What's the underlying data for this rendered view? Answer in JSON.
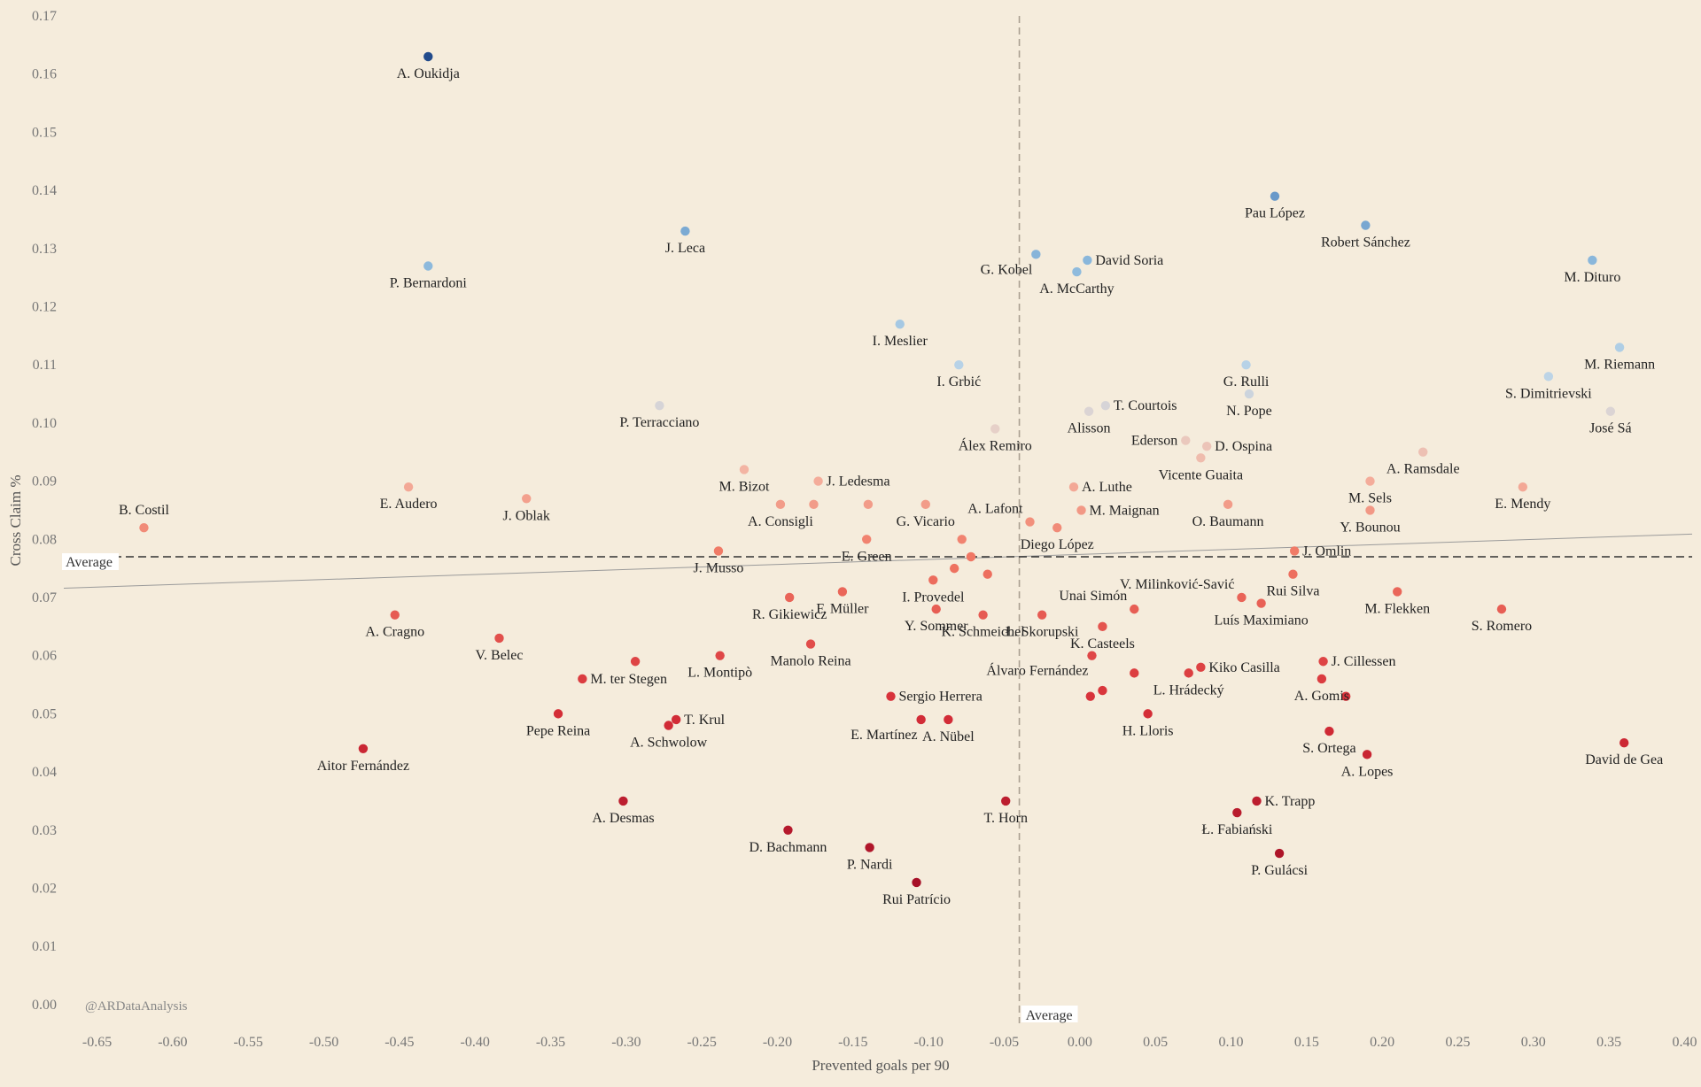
{
  "chart_data": {
    "type": "scatter",
    "xlabel": "Prevented goals per 90",
    "ylabel": "Cross Claim %",
    "xlim": [
      -0.672,
      0.405
    ],
    "ylim": [
      -0.002,
      0.17
    ],
    "xticks": [
      "-0.65",
      "-0.60",
      "-0.55",
      "-0.50",
      "-0.45",
      "-0.40",
      "-0.35",
      "-0.30",
      "-0.25",
      "-0.20",
      "-0.15",
      "-0.10",
      "-0.05",
      "0.00",
      "0.05",
      "0.10",
      "0.15",
      "0.20",
      "0.25",
      "0.30",
      "0.35",
      "0.40"
    ],
    "yticks": [
      "0.00",
      "0.01",
      "0.02",
      "0.03",
      "0.04",
      "0.05",
      "0.06",
      "0.07",
      "0.08",
      "0.09",
      "0.10",
      "0.11",
      "0.12",
      "0.13",
      "0.14",
      "0.15",
      "0.16",
      "0.17"
    ],
    "x_average": -0.04,
    "y_average": 0.077,
    "average_label_x": "Average",
    "average_label_y": "Average",
    "trend_line": {
      "x": [
        -0.672,
        0.405
      ],
      "y": [
        0.0716,
        0.0809
      ]
    },
    "credit": "@ARDataAnalysis",
    "grid": false,
    "colormap": "RdBu (low cross claim = red, high = blue)",
    "points": [
      {
        "name": "A. Oukidja",
        "x": -0.431,
        "y": 0.163
      },
      {
        "name": "P. Bernardoni",
        "x": -0.431,
        "y": 0.127
      },
      {
        "name": "J. Leca",
        "x": -0.261,
        "y": 0.133
      },
      {
        "name": "I. Meslier",
        "x": -0.119,
        "y": 0.117
      },
      {
        "name": "I. Grbić",
        "x": -0.08,
        "y": 0.11
      },
      {
        "name": "P. Terracciano",
        "x": -0.278,
        "y": 0.103
      },
      {
        "name": "Álex Remiro",
        "x": -0.056,
        "y": 0.099
      },
      {
        "name": "G. Kobel",
        "x": -0.029,
        "y": 0.129
      },
      {
        "name": "David Soria",
        "x": 0.005,
        "y": 0.128
      },
      {
        "name": "A. McCarthy",
        "x": -0.002,
        "y": 0.126
      },
      {
        "name": "Pau López",
        "x": 0.129,
        "y": 0.139
      },
      {
        "name": "Robert Sánchez",
        "x": 0.189,
        "y": 0.134
      },
      {
        "name": "M. Dituro",
        "x": 0.339,
        "y": 0.128
      },
      {
        "name": "M. Riemann",
        "x": 0.357,
        "y": 0.113
      },
      {
        "name": "S. Dimitrievski",
        "x": 0.31,
        "y": 0.108
      },
      {
        "name": "José Sá",
        "x": 0.351,
        "y": 0.102
      },
      {
        "name": "G. Rulli",
        "x": 0.11,
        "y": 0.11
      },
      {
        "name": "N. Pope",
        "x": 0.112,
        "y": 0.105
      },
      {
        "name": "T. Courtois",
        "x": 0.017,
        "y": 0.103
      },
      {
        "name": "Alisson",
        "x": 0.006,
        "y": 0.102
      },
      {
        "name": "Ederson",
        "x": 0.07,
        "y": 0.097
      },
      {
        "name": "D. Ospina",
        "x": 0.084,
        "y": 0.096
      },
      {
        "name": "Vicente Guaita",
        "x": 0.08,
        "y": 0.094
      },
      {
        "name": "A. Ramsdale",
        "x": 0.227,
        "y": 0.095
      },
      {
        "name": "M. Sels",
        "x": 0.192,
        "y": 0.09
      },
      {
        "name": "E. Mendy",
        "x": 0.293,
        "y": 0.089
      },
      {
        "name": "Y. Bounou",
        "x": 0.192,
        "y": 0.085
      },
      {
        "name": "B. Costil",
        "x": -0.619,
        "y": 0.082
      },
      {
        "name": "E. Audero",
        "x": -0.444,
        "y": 0.089
      },
      {
        "name": "J. Oblak",
        "x": -0.366,
        "y": 0.087
      },
      {
        "name": "M. Bizot",
        "x": -0.222,
        "y": 0.092
      },
      {
        "name": "J. Ledesma",
        "x": -0.173,
        "y": 0.09
      },
      {
        "name": "A. Consigli",
        "x": -0.198,
        "y": 0.086
      },
      {
        "name": "",
        "x": -0.176,
        "y": 0.086
      },
      {
        "name": "",
        "x": -0.14,
        "y": 0.086
      },
      {
        "name": "G. Vicario",
        "x": -0.102,
        "y": 0.086
      },
      {
        "name": "A. Lafont",
        "x": -0.033,
        "y": 0.083
      },
      {
        "name": "A. Luthe",
        "x": -0.004,
        "y": 0.089
      },
      {
        "name": "M. Maignan",
        "x": 0.001,
        "y": 0.085
      },
      {
        "name": "Diego López",
        "x": -0.015,
        "y": 0.082
      },
      {
        "name": "O. Baumann",
        "x": 0.098,
        "y": 0.086
      },
      {
        "name": "J. Musso",
        "x": -0.239,
        "y": 0.078
      },
      {
        "name": "E. Green",
        "x": -0.141,
        "y": 0.08
      },
      {
        "name": "",
        "x": -0.078,
        "y": 0.08
      },
      {
        "name": "",
        "x": -0.072,
        "y": 0.077
      },
      {
        "name": "",
        "x": -0.083,
        "y": 0.075
      },
      {
        "name": "",
        "x": -0.061,
        "y": 0.074
      },
      {
        "name": "I. Provedel",
        "x": -0.097,
        "y": 0.073
      },
      {
        "name": "J. Omlin",
        "x": 0.142,
        "y": 0.078
      },
      {
        "name": "Rui Silva",
        "x": 0.141,
        "y": 0.074
      },
      {
        "name": "V. Milinković-Savić",
        "x": 0.107,
        "y": 0.07
      },
      {
        "name": "Luís Maximiano",
        "x": 0.12,
        "y": 0.069
      },
      {
        "name": "M. Flekken",
        "x": 0.21,
        "y": 0.071
      },
      {
        "name": "S. Romero",
        "x": 0.279,
        "y": 0.068
      },
      {
        "name": "Unai Simón",
        "x": 0.036,
        "y": 0.068
      },
      {
        "name": "K. Casteels",
        "x": 0.015,
        "y": 0.065
      },
      {
        "name": "Ł. Skorupski",
        "x": -0.025,
        "y": 0.067
      },
      {
        "name": "K. Schmeichel",
        "x": -0.064,
        "y": 0.067
      },
      {
        "name": "Y. Sommer",
        "x": -0.095,
        "y": 0.068
      },
      {
        "name": "F. Müller",
        "x": -0.157,
        "y": 0.071
      },
      {
        "name": "R. Gikiewicz",
        "x": -0.192,
        "y": 0.07
      },
      {
        "name": "A. Cragno",
        "x": -0.453,
        "y": 0.067
      },
      {
        "name": "V. Belec",
        "x": -0.384,
        "y": 0.063
      },
      {
        "name": "M. ter Stegen",
        "x": -0.329,
        "y": 0.056
      },
      {
        "name": "",
        "x": -0.294,
        "y": 0.059
      },
      {
        "name": "L. Montipò",
        "x": -0.238,
        "y": 0.06
      },
      {
        "name": "Manolo Reina",
        "x": -0.178,
        "y": 0.062
      },
      {
        "name": "Álvaro Fernández",
        "x": 0.008,
        "y": 0.06
      },
      {
        "name": "Kiko Casilla",
        "x": 0.08,
        "y": 0.058
      },
      {
        "name": "L. Hrádecký",
        "x": 0.072,
        "y": 0.057
      },
      {
        "name": "",
        "x": 0.036,
        "y": 0.057
      },
      {
        "name": "",
        "x": 0.015,
        "y": 0.054
      },
      {
        "name": "",
        "x": 0.007,
        "y": 0.053
      },
      {
        "name": "J. Cillessen",
        "x": 0.161,
        "y": 0.059
      },
      {
        "name": "A. Gomis",
        "x": 0.16,
        "y": 0.056
      },
      {
        "name": "",
        "x": 0.176,
        "y": 0.053
      },
      {
        "name": "H. Lloris",
        "x": 0.045,
        "y": 0.05
      },
      {
        "name": "Sergio Herrera",
        "x": -0.125,
        "y": 0.053
      },
      {
        "name": "E. Martínez",
        "x": -0.105,
        "y": 0.049
      },
      {
        "name": "A. Nübel",
        "x": -0.087,
        "y": 0.049
      },
      {
        "name": "Pepe Reina",
        "x": -0.345,
        "y": 0.05
      },
      {
        "name": "T. Krul",
        "x": -0.267,
        "y": 0.049
      },
      {
        "name": "A. Schwolow",
        "x": -0.272,
        "y": 0.048
      },
      {
        "name": "Aitor Fernández",
        "x": -0.474,
        "y": 0.044
      },
      {
        "name": "S. Ortega",
        "x": 0.165,
        "y": 0.047
      },
      {
        "name": "A. Lopes",
        "x": 0.19,
        "y": 0.043
      },
      {
        "name": "David de Gea",
        "x": 0.36,
        "y": 0.045
      },
      {
        "name": "A. Desmas",
        "x": -0.302,
        "y": 0.035
      },
      {
        "name": "T. Horn",
        "x": -0.049,
        "y": 0.035
      },
      {
        "name": "K. Trapp",
        "x": 0.117,
        "y": 0.035
      },
      {
        "name": "Ł. Fabiański",
        "x": 0.104,
        "y": 0.033
      },
      {
        "name": "D. Bachmann",
        "x": -0.193,
        "y": 0.03
      },
      {
        "name": "P. Nardi",
        "x": -0.139,
        "y": 0.027
      },
      {
        "name": "P. Gulácsi",
        "x": 0.132,
        "y": 0.026
      },
      {
        "name": "Rui Patrício",
        "x": -0.108,
        "y": 0.021
      }
    ]
  }
}
